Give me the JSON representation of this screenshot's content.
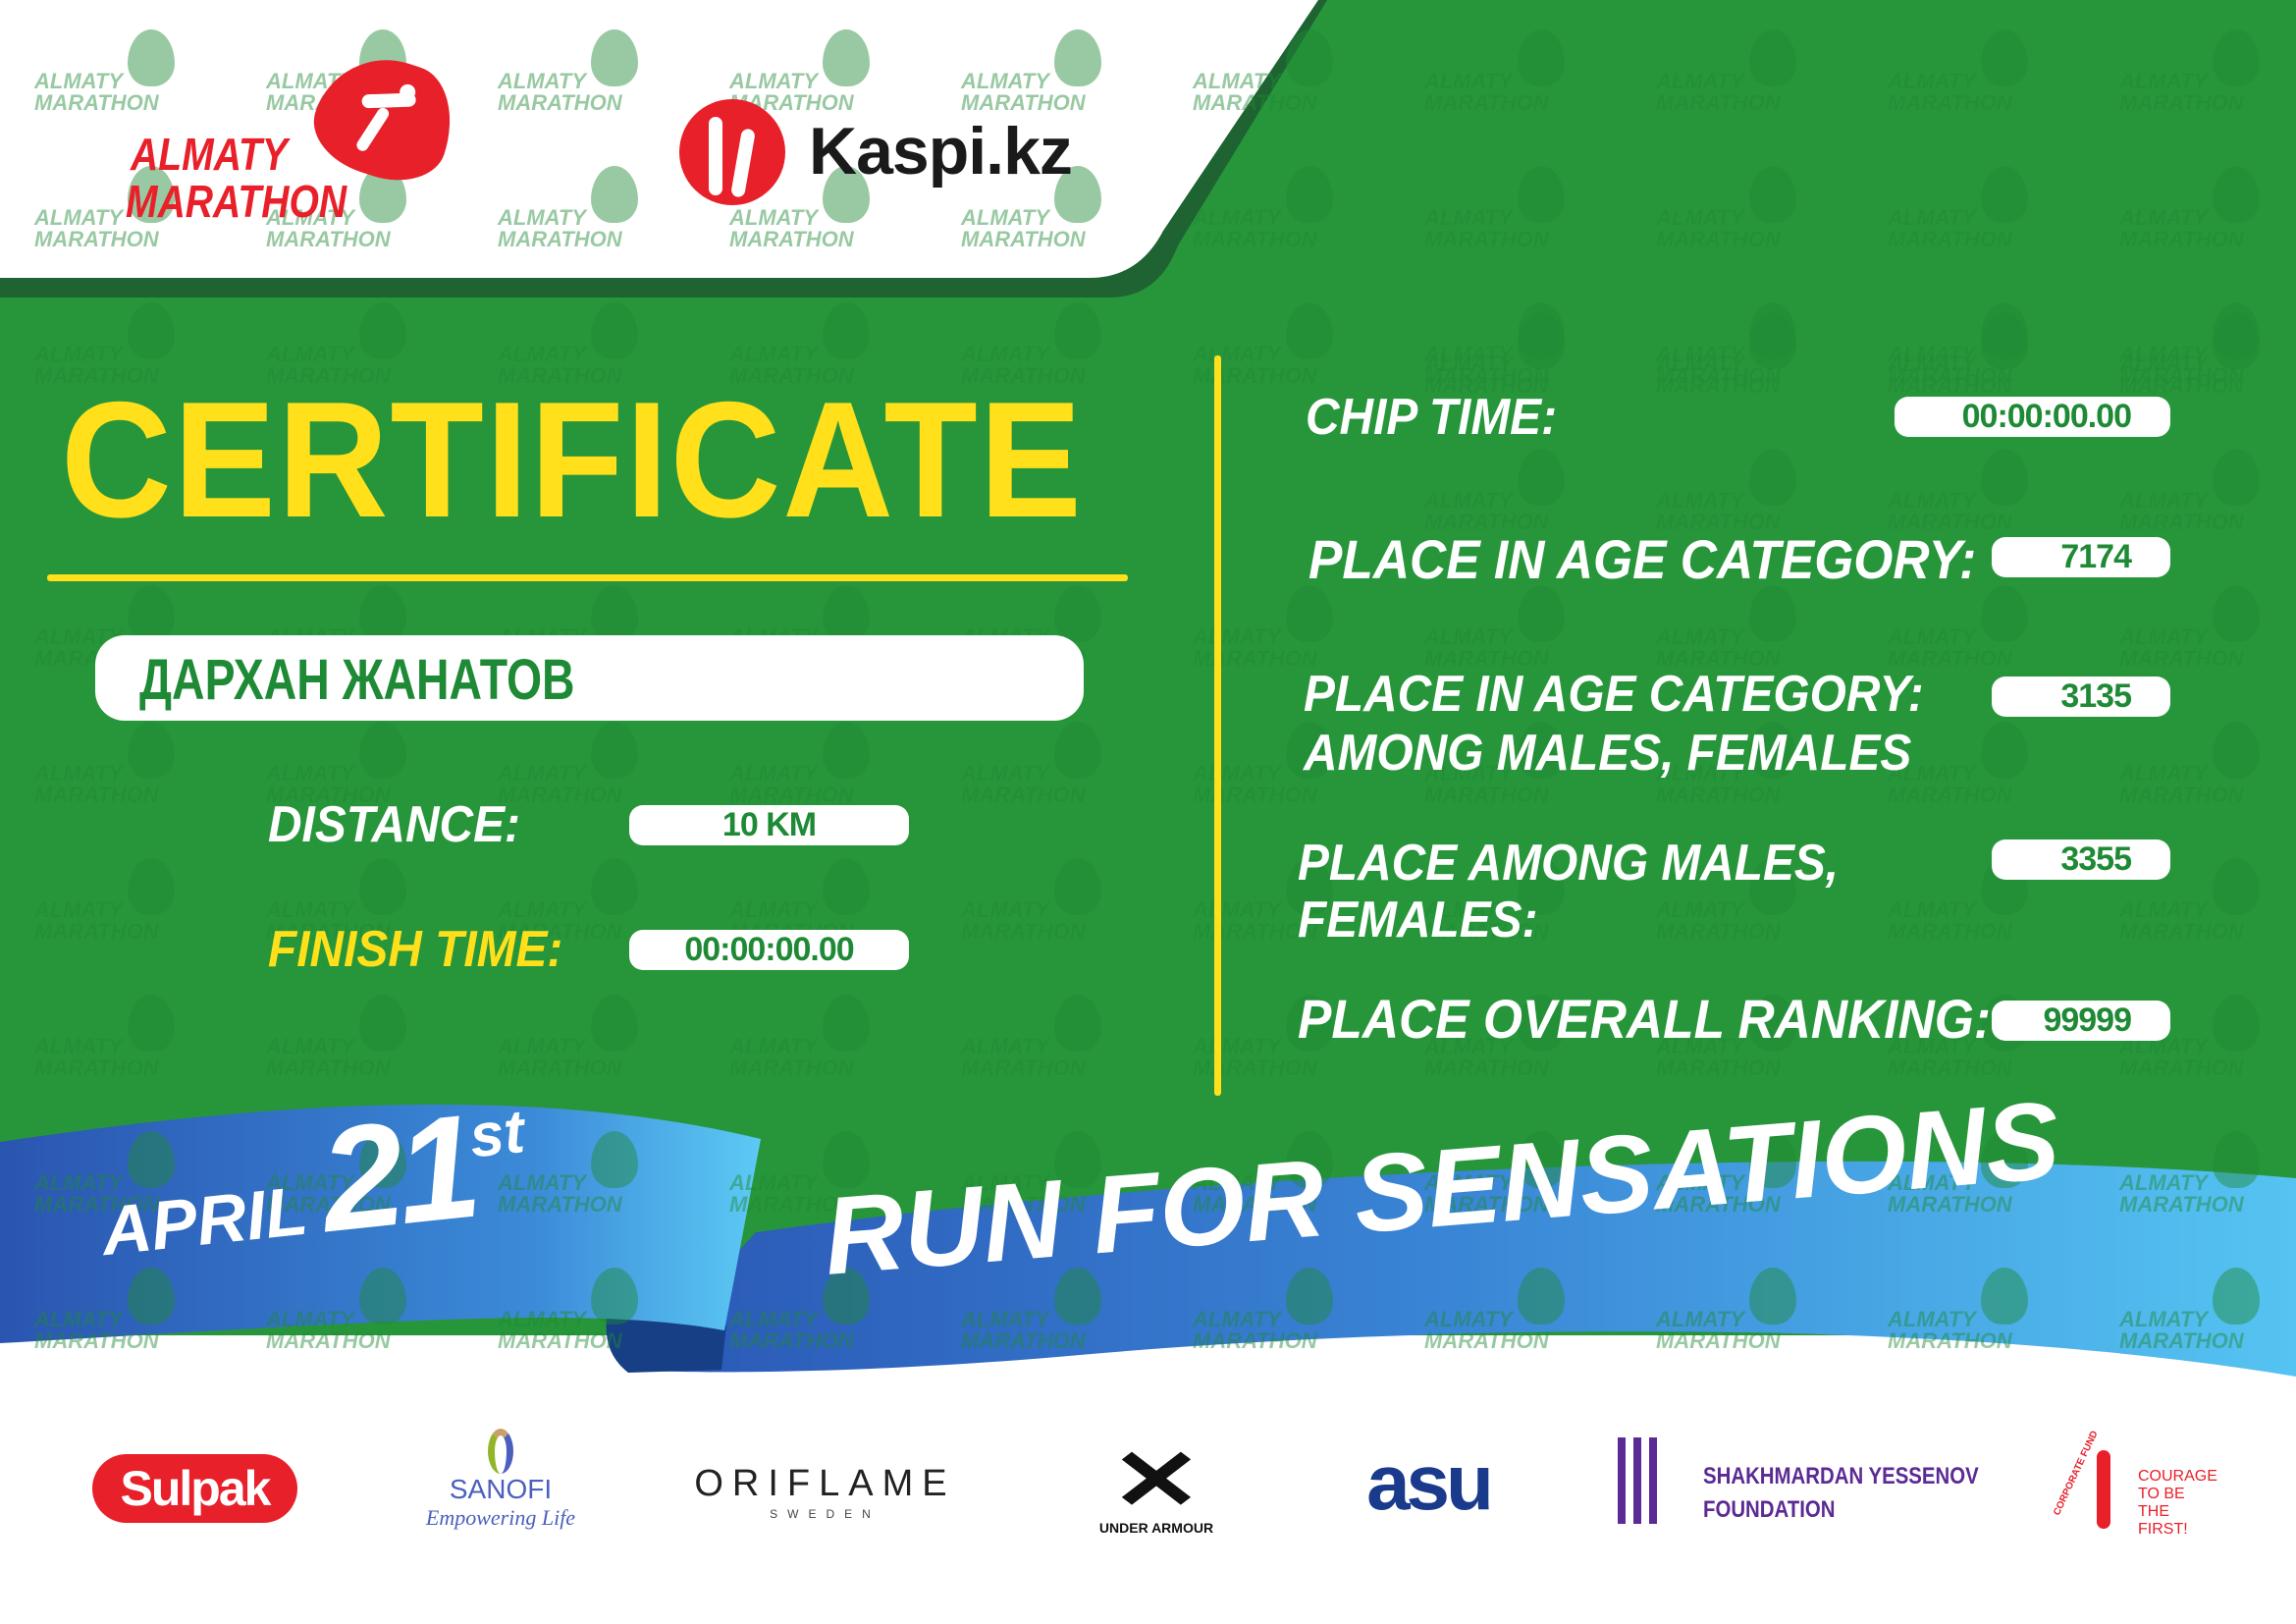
{
  "header": {
    "event_logo": "ALMATY MARATHON",
    "event_logo_line1": "ALMATY",
    "event_logo_line2": "MARATHON",
    "sponsor_logo": "Kaspi.kz"
  },
  "watermark": {
    "line1": "ALMATY",
    "line2": "MARATHON"
  },
  "certificate": {
    "title": "CERTIFICATE",
    "participant_name": "ДАРХАН ЖАНАТОВ"
  },
  "left_fields": {
    "distance_label": "DISTANCE:",
    "distance_value": "10 KM",
    "finish_label": "FINISH TIME:",
    "finish_value": "00:00:00.00"
  },
  "right_fields": {
    "chip_label": "CHIP TIME:",
    "chip_value": "00:00:00.00",
    "age_cat_label": "PLACE IN AGE CATEGORY:",
    "age_cat_value": "7174",
    "age_cat_gender_label_1": "PLACE IN AGE CATEGORY:",
    "age_cat_gender_label_2": "AMONG MALES, FEMALES",
    "age_cat_gender_value": "3135",
    "gender_label_1": "PLACE AMONG MALES,",
    "gender_label_2": "FEMALES:",
    "gender_value": "3355",
    "overall_label": "PLACE OVERALL RANKING:",
    "overall_value": "99999"
  },
  "ribbon": {
    "month": "APRIL",
    "day": "21",
    "suffix": "st",
    "slogan": "RUN FOR SENSATIONS"
  },
  "partners": {
    "sulpak": "Sulpak",
    "sanofi": "SANOFI",
    "sanofi_tagline": "Empowering Life",
    "oriflame": "ORIFLAME",
    "oriflame_sub": "SWEDEN",
    "under_armour": "UNDER ARMOUR",
    "asu": "asu",
    "yessenov_1": "SHAKHMARDAN YESSENOV",
    "yessenov_2": "FOUNDATION",
    "courage_arc": "CORPORATE FUND",
    "courage_1": "COURAGE",
    "courage_2": "TO BE",
    "courage_3": "THE FIRST!"
  },
  "colors": {
    "green": "#27963B",
    "dark_green": "#1E6331",
    "yellow": "#FFE01B",
    "red": "#E8202A",
    "blue": "#2F6BC4",
    "light_blue": "#52C2F0"
  }
}
